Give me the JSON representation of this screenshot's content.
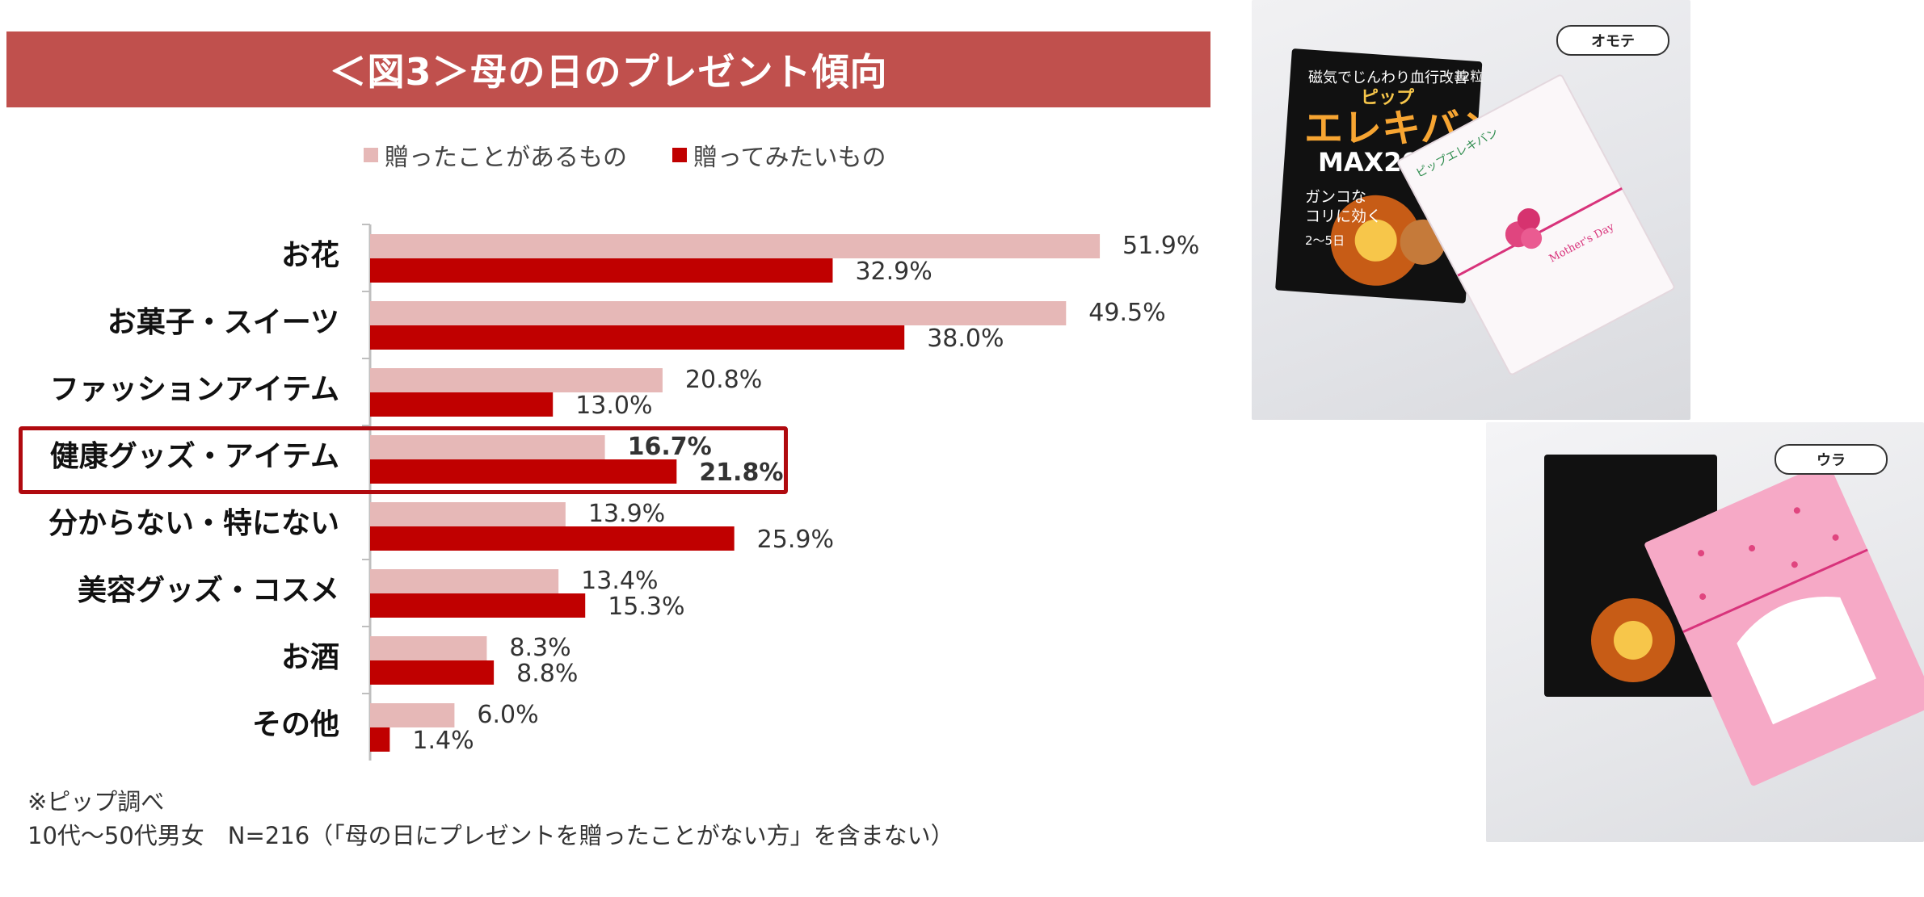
{
  "title": "＜図3＞母の日のプレゼント傾向",
  "legend": {
    "given_label": "贈ったことがあるもの",
    "want_label": "贈ってみたいもの"
  },
  "colors": {
    "banner": "#c0504d",
    "given": "#e6b8b7",
    "want": "#c00000",
    "highlight_border": "#b00a0f"
  },
  "chart_data": {
    "type": "bar",
    "orientation": "horizontal",
    "categories": [
      "お花",
      "お菓子・スイーツ",
      "ファッションアイテム",
      "健康グッズ・アイテム",
      "分からない・特にない",
      "美容グッズ・コスメ",
      "お酒",
      "その他"
    ],
    "series": [
      {
        "name": "贈ったことがあるもの",
        "values": [
          51.9,
          49.5,
          20.8,
          16.7,
          13.9,
          13.4,
          8.3,
          6.0
        ]
      },
      {
        "name": "贈ってみたいもの",
        "values": [
          32.9,
          38.0,
          13.0,
          21.8,
          25.9,
          15.3,
          8.8,
          1.4
        ]
      }
    ],
    "value_labels": {
      "given": [
        "51.9%",
        "49.5%",
        "20.8%",
        "16.7%",
        "13.9%",
        "13.4%",
        "8.3%",
        "6.0%"
      ],
      "want": [
        "32.9%",
        "38.0%",
        "13.0%",
        "21.8%",
        "25.9%",
        "15.3%",
        "8.8%",
        "1.4%"
      ]
    },
    "highlighted_category_index": 3,
    "xlim": [
      0,
      60
    ],
    "grid": false,
    "legend_position": "top"
  },
  "notes": {
    "source": "※ピップ調べ",
    "sample": "10代～50代男女　N=216（「母の日にプレゼントを贈ったことがない方」を含まない）"
  },
  "photos": {
    "front_tag": "オモテ",
    "back_tag": "ウラ",
    "package_top_text": "磁気でじんわり血行改善",
    "package_count": "12粒",
    "package_brand": "ピップ",
    "package_name": "エレキバン",
    "package_model": "MAX200",
    "package_claim_1": "ガンコな",
    "package_claim_2": "コリに効く",
    "package_badge": "2～5日",
    "gift_box_brand": "ピップエレキバン",
    "gift_box_text": "Mother's Day"
  }
}
